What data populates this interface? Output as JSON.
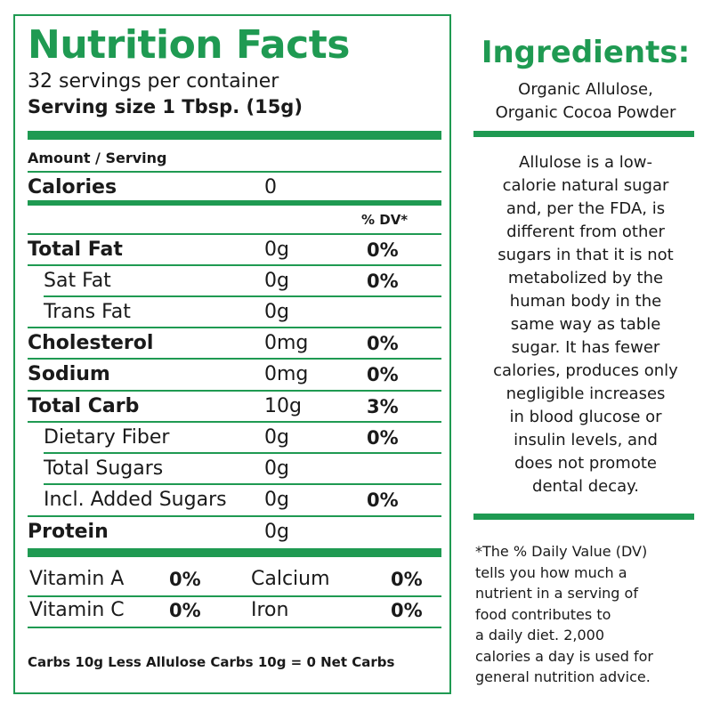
{
  "label": {
    "title": "Nutrition Facts",
    "servings_per_container": "32 servings per container",
    "serving_size": "Serving size 1 Tbsp. (15g)",
    "amount_header": "Amount / Serving",
    "calories_label": "Calories",
    "calories_value": "0",
    "dv_header": "% DV*",
    "nutrients": [
      {
        "name": "Total Fat",
        "amount": "0g",
        "dv": "0%"
      },
      {
        "name": "Sat Fat",
        "amount": "0g",
        "dv": "0%"
      },
      {
        "name": "Trans Fat",
        "amount": "0g",
        "dv": ""
      },
      {
        "name": "Cholesterol",
        "amount": "0mg",
        "dv": "0%"
      },
      {
        "name": "Sodium",
        "amount": "0mg",
        "dv": "0%"
      },
      {
        "name": "Total Carb",
        "amount": "10g",
        "dv": "3%"
      },
      {
        "name": "Dietary Fiber",
        "amount": "0g",
        "dv": "0%"
      },
      {
        "name": "Total Sugars",
        "amount": "0g",
        "dv": ""
      },
      {
        "name": "Incl. Added Sugars",
        "amount": "0g",
        "dv": "0%"
      },
      {
        "name": "Protein",
        "amount": "0g",
        "dv": ""
      }
    ],
    "vitamins": [
      {
        "name": "Vitamin A",
        "dv": "0%"
      },
      {
        "name": "Calcium",
        "dv": "0%"
      },
      {
        "name": "Vitamin C",
        "dv": "0%"
      },
      {
        "name": "Iron",
        "dv": "0%"
      }
    ],
    "net_carbs": "Carbs 10g Less Allulose Carbs 10g = 0 Net Carbs"
  },
  "ingredients": {
    "title": "Ingredients:",
    "lines": [
      "Organic Allulose,",
      "Organic Cocoa Powder"
    ]
  },
  "allulose_info": {
    "lines": [
      "Allulose is a low-",
      "calorie natural sugar",
      "and, per the FDA, is",
      "different from other",
      "sugars in that it is not",
      "metabolized by the",
      "human body in the",
      "same way as table",
      "sugar. It has fewer",
      "calories, produces only",
      "negligible increases",
      "in blood glucose or",
      "insulin levels, and",
      "does not promote",
      "dental decay."
    ]
  },
  "dv_footnote": {
    "lines": [
      "*The % Daily Value (DV)",
      "tells you how much a",
      "nutrient in a serving of",
      "food contributes to",
      "a daily diet. 2,000",
      "calories a day is used for",
      "general nutrition advice."
    ]
  },
  "colors": {
    "brand_green": "#1f9a52",
    "text": "#1a1a1a"
  }
}
